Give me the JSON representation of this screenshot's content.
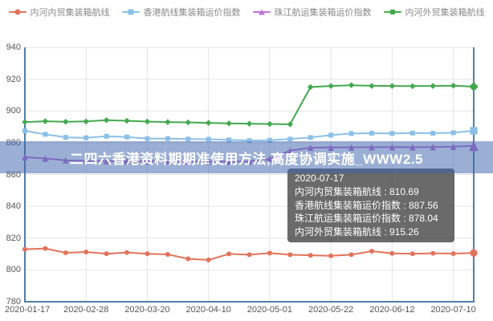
{
  "banner": {
    "text": "二四六香港资料期期准使用方法,高度协调实施_WWW2.5"
  },
  "legend": {
    "items": [
      {
        "label": "内河内贸集装箱航线",
        "shape": "circle",
        "color": "#e2735b"
      },
      {
        "label": "香港航线集装箱运价指数",
        "shape": "square",
        "color": "#8ac0e8"
      },
      {
        "label": "珠江航运集装箱运价指数",
        "shape": "triangle",
        "color": "#bf72d8"
      },
      {
        "label": "内河外贸集装箱航线",
        "shape": "diamond",
        "color": "#43a94f"
      }
    ]
  },
  "tooltip": {
    "date": "2020-07-17",
    "rows": [
      {
        "name": "内河内贸集装箱航线",
        "value": "810.69"
      },
      {
        "name": "香港航线集装箱运价指数",
        "value": "887.56"
      },
      {
        "name": "珠江航运集装箱运价指数",
        "value": "878.04"
      },
      {
        "name": "内河外贸集装箱航线",
        "value": "915.26"
      }
    ]
  },
  "chart_data": {
    "type": "line",
    "title": "",
    "ylim": [
      780,
      940
    ],
    "y_ticks": [
      780,
      800,
      820,
      840,
      860,
      880,
      900,
      920,
      940
    ],
    "x_tick_labels": [
      "2020-01-17",
      "2020-02-28",
      "2020-03-20",
      "2020-04-10",
      "2020-05-01",
      "2020-05-22",
      "2020-06-12",
      "2020-07-10"
    ],
    "x_tick_indices": [
      0,
      3,
      6,
      9,
      12,
      15,
      18,
      21
    ],
    "points_count": 23,
    "hover_category": "2020-07-17",
    "grid": true,
    "legend_position": "top",
    "series": [
      {
        "name": "内河内贸集装箱航线",
        "marker": "circle",
        "color": "#e2735b",
        "values": [
          813.0,
          813.5,
          810.8,
          811.3,
          810.2,
          811.0,
          810.2,
          809.8,
          807.0,
          806.3,
          810.1,
          809.6,
          810.6,
          809.6,
          809.2,
          808.9,
          809.6,
          811.8,
          810.4,
          810.2,
          810.5,
          810.3,
          810.69
        ]
      },
      {
        "name": "香港航线集装箱运价指数",
        "marker": "square",
        "color": "#8ac0e8",
        "values": [
          887.5,
          885.3,
          883.4,
          883.1,
          884.1,
          883.6,
          882.6,
          882.6,
          882.3,
          882.2,
          881.8,
          881.4,
          881.6,
          882.3,
          883.3,
          884.8,
          885.8,
          886.0,
          885.9,
          886.1,
          886.0,
          886.3,
          887.56
        ]
      },
      {
        "name": "珠江航运集装箱运价指数",
        "marker": "triangle",
        "color": "#bf72d8",
        "values": [
          871.0,
          870.1,
          869.0,
          868.6,
          868.5,
          868.4,
          868.4,
          868.3,
          868.3,
          868.2,
          868.2,
          868.3,
          869.8,
          875.0,
          876.9,
          877.0,
          877.1,
          877.2,
          877.3,
          877.2,
          877.3,
          877.5,
          878.04
        ]
      },
      {
        "name": "内河外贸集装箱航线",
        "marker": "diamond",
        "color": "#43a94f",
        "values": [
          893.0,
          893.5,
          893.2,
          893.4,
          894.2,
          893.8,
          893.3,
          893.0,
          892.8,
          892.5,
          892.2,
          892.0,
          891.8,
          891.6,
          915.0,
          915.7,
          916.2,
          915.8,
          915.7,
          915.6,
          915.7,
          915.9,
          915.26
        ]
      }
    ]
  },
  "colors": {
    "axis_line": "#4f7fa8",
    "grid_line": "#e4e4e4",
    "banner_bg": "rgba(64,102,172,0.52)",
    "tooltip_bg": "rgba(48,48,48,0.72)"
  }
}
